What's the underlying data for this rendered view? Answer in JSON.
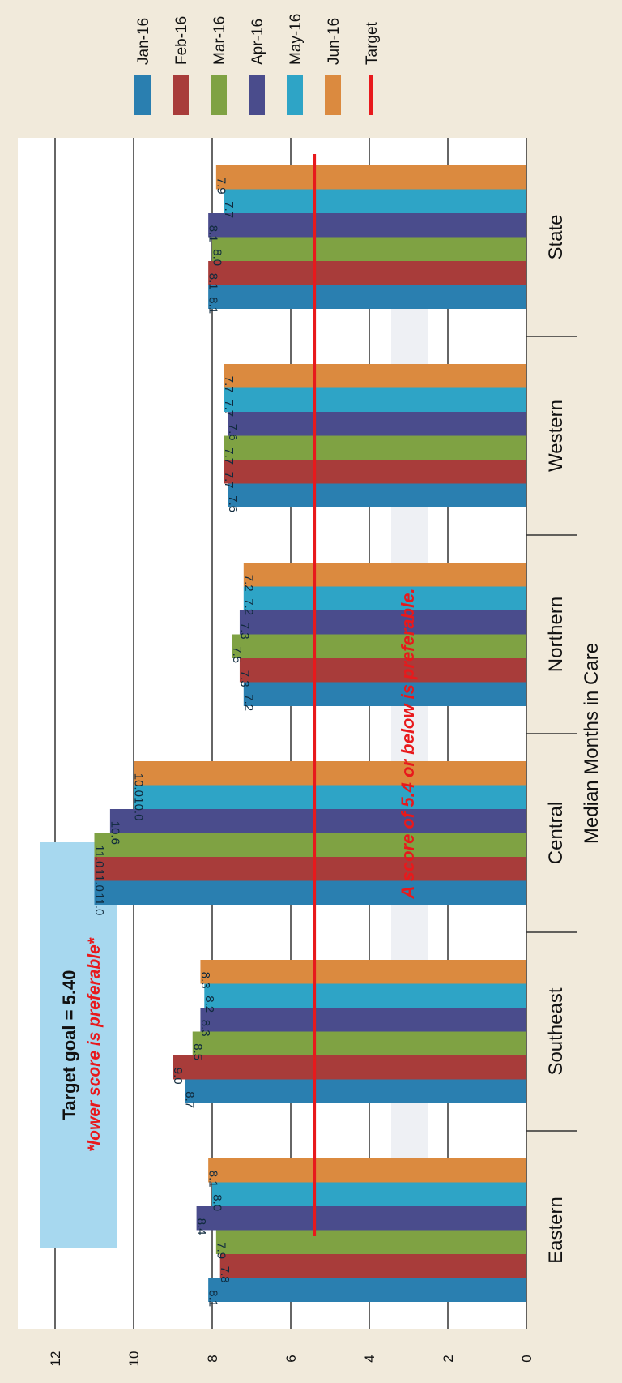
{
  "chart_data": {
    "type": "bar",
    "orientation": "vertical",
    "xlabel": "Median Months in Care",
    "ylim": [
      0,
      12
    ],
    "yticks": [
      0,
      2,
      4,
      6,
      8,
      10,
      12
    ],
    "grid": true,
    "legend_position": "right",
    "categories": [
      "Eastern",
      "Southeast",
      "Central",
      "Northern",
      "Western",
      "State"
    ],
    "series": [
      {
        "name": "Jan-16",
        "color": "#2a7fb0",
        "values": [
          8.1,
          8.7,
          11.0,
          7.2,
          7.6,
          8.1
        ]
      },
      {
        "name": "Feb-16",
        "color": "#a83c3a",
        "values": [
          7.8,
          9.0,
          11.0,
          7.3,
          7.7,
          8.1
        ]
      },
      {
        "name": "Mar-16",
        "color": "#7fa243",
        "values": [
          7.9,
          8.5,
          11.0,
          7.5,
          7.7,
          8.0
        ]
      },
      {
        "name": "Apr-16",
        "color": "#4a4c8c",
        "values": [
          8.4,
          8.3,
          10.6,
          7.3,
          7.6,
          8.1
        ]
      },
      {
        "name": "May-16",
        "color": "#2ea4c6",
        "values": [
          8.0,
          8.2,
          10.0,
          7.2,
          7.7,
          7.7
        ]
      },
      {
        "name": "Jun-16",
        "color": "#db8a3f",
        "values": [
          8.1,
          8.3,
          10.0,
          7.2,
          7.7,
          7.9
        ]
      }
    ],
    "data_labels": [
      [
        "8.1",
        "8.7",
        "11.0",
        "7.2",
        "7.6",
        "8.1"
      ],
      [
        "7.8",
        "9.0",
        "11.0",
        "7.3",
        "7.7",
        "8.1"
      ],
      [
        "7.9",
        "8.5",
        "11.0",
        "7.5",
        "7.7",
        "8.0"
      ],
      [
        "8.4",
        "8.3",
        "10.6",
        "7.3",
        "7.6",
        "8.1"
      ],
      [
        "8.0",
        "8.2",
        "10.0",
        "7.2",
        "7.7",
        "7.7"
      ],
      [
        "8.1",
        "8.3",
        "10.0",
        "7.2",
        "7.7",
        "7.9"
      ]
    ],
    "target": {
      "name": "Target",
      "value": 5.4,
      "color": "#e8191c"
    },
    "annotations": {
      "target_goal": "Target goal = 5.40",
      "lower_score": "*lower score is preferable*",
      "note": "A score of 5.4 or below is preferable."
    }
  }
}
